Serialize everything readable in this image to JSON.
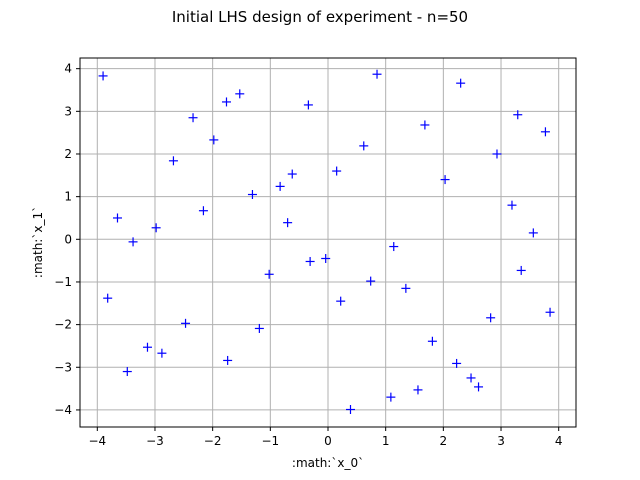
{
  "chart_data": {
    "type": "scatter",
    "title": "Initial LHS design of experiment - n=50",
    "xlabel": ":math:`x_0`",
    "ylabel": ":math:`x_1`",
    "xlim": [
      -4.3,
      4.3
    ],
    "ylim": [
      -4.4,
      4.25
    ],
    "xticks": [
      -4,
      -3,
      -2,
      -1,
      0,
      1,
      2,
      3,
      4
    ],
    "yticks": [
      -4,
      -3,
      -2,
      -1,
      0,
      1,
      2,
      3,
      4
    ],
    "grid": true,
    "marker": "+",
    "color": "#0000ff",
    "points": [
      [
        -3.9,
        3.83
      ],
      [
        -3.82,
        -1.38
      ],
      [
        -3.65,
        0.5
      ],
      [
        -3.48,
        -3.1
      ],
      [
        -3.38,
        -0.06
      ],
      [
        -3.13,
        -2.53
      ],
      [
        -2.98,
        0.27
      ],
      [
        -2.88,
        -2.67
      ],
      [
        -2.68,
        1.84
      ],
      [
        -2.47,
        -1.97
      ],
      [
        -2.34,
        2.85
      ],
      [
        -2.16,
        0.67
      ],
      [
        -1.98,
        2.33
      ],
      [
        -1.76,
        3.22
      ],
      [
        -1.74,
        -2.84
      ],
      [
        -1.53,
        3.41
      ],
      [
        -1.31,
        1.05
      ],
      [
        -1.19,
        -2.09
      ],
      [
        -1.02,
        -0.82
      ],
      [
        -0.83,
        1.24
      ],
      [
        -0.7,
        0.39
      ],
      [
        -0.62,
        1.53
      ],
      [
        -0.34,
        3.15
      ],
      [
        -0.31,
        -0.52
      ],
      [
        -0.04,
        -0.45
      ],
      [
        0.15,
        1.6
      ],
      [
        0.22,
        -1.45
      ],
      [
        0.39,
        -3.99
      ],
      [
        0.62,
        2.19
      ],
      [
        0.74,
        -0.98
      ],
      [
        0.85,
        3.87
      ],
      [
        1.09,
        -3.7
      ],
      [
        1.14,
        -0.17
      ],
      [
        1.35,
        -1.15
      ],
      [
        1.56,
        -3.53
      ],
      [
        1.68,
        2.68
      ],
      [
        1.81,
        -2.39
      ],
      [
        2.03,
        1.4
      ],
      [
        2.23,
        -2.91
      ],
      [
        2.3,
        3.66
      ],
      [
        2.48,
        -3.25
      ],
      [
        2.61,
        -3.46
      ],
      [
        2.82,
        -1.84
      ],
      [
        2.93,
        2.0
      ],
      [
        3.19,
        0.8
      ],
      [
        3.29,
        2.92
      ],
      [
        3.35,
        -0.73
      ],
      [
        3.56,
        0.15
      ],
      [
        3.77,
        2.52
      ],
      [
        3.85,
        -1.71
      ]
    ]
  }
}
